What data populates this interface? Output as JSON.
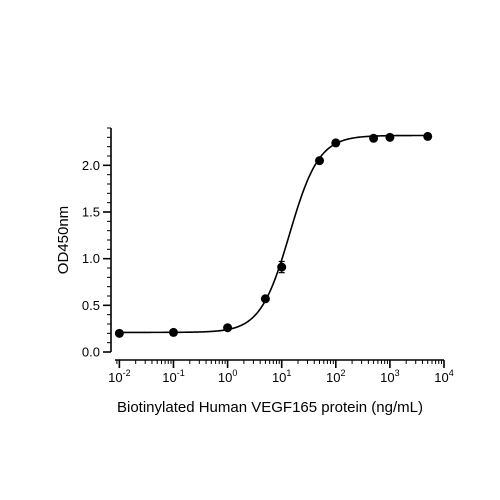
{
  "chart_data": {
    "type": "scatter",
    "title": "",
    "xlabel": "Biotinylated Human VEGF165 protein (ng/mL)",
    "ylabel": "OD450nm",
    "x_scale": "log",
    "xlim": [
      0.007,
      10000
    ],
    "ylim": [
      0,
      2.4
    ],
    "x_ticks": [
      {
        "base": "10",
        "exp": "-2",
        "value": 0.01
      },
      {
        "base": "10",
        "exp": "-1",
        "value": 0.1
      },
      {
        "base": "10",
        "exp": "0",
        "value": 1
      },
      {
        "base": "10",
        "exp": "1",
        "value": 10
      },
      {
        "base": "10",
        "exp": "2",
        "value": 100
      },
      {
        "base": "10",
        "exp": "3",
        "value": 1000
      },
      {
        "base": "10",
        "exp": "4",
        "value": 10000
      }
    ],
    "y_ticks": [
      {
        "label": "0.0",
        "value": 0
      },
      {
        "label": "0.5",
        "value": 0.5
      },
      {
        "label": "1.0",
        "value": 1.0
      },
      {
        "label": "1.5",
        "value": 1.5
      },
      {
        "label": "2.0",
        "value": 2.0
      }
    ],
    "grid": false,
    "legend": "none",
    "series": [
      {
        "points": [
          {
            "x": 0.01,
            "y": 0.2,
            "err": 0
          },
          {
            "x": 0.1,
            "y": 0.21,
            "err": 0
          },
          {
            "x": 1,
            "y": 0.26,
            "err": 0
          },
          {
            "x": 5,
            "y": 0.57,
            "err": 0
          },
          {
            "x": 10,
            "y": 0.91,
            "err": 0.06
          },
          {
            "x": 50,
            "y": 2.05,
            "err": 0
          },
          {
            "x": 100,
            "y": 2.24,
            "err": 0
          },
          {
            "x": 500,
            "y": 2.29,
            "err": 0
          },
          {
            "x": 1000,
            "y": 2.3,
            "err": 0
          },
          {
            "x": 5000,
            "y": 2.31,
            "err": 0
          }
        ],
        "fit": {
          "model": "4PL",
          "bottom": 0.21,
          "top": 2.32,
          "ec50": 14,
          "hill": 1.6
        }
      }
    ],
    "colors": {
      "marker": "#000000",
      "line": "#000000",
      "axis": "#000000"
    }
  }
}
